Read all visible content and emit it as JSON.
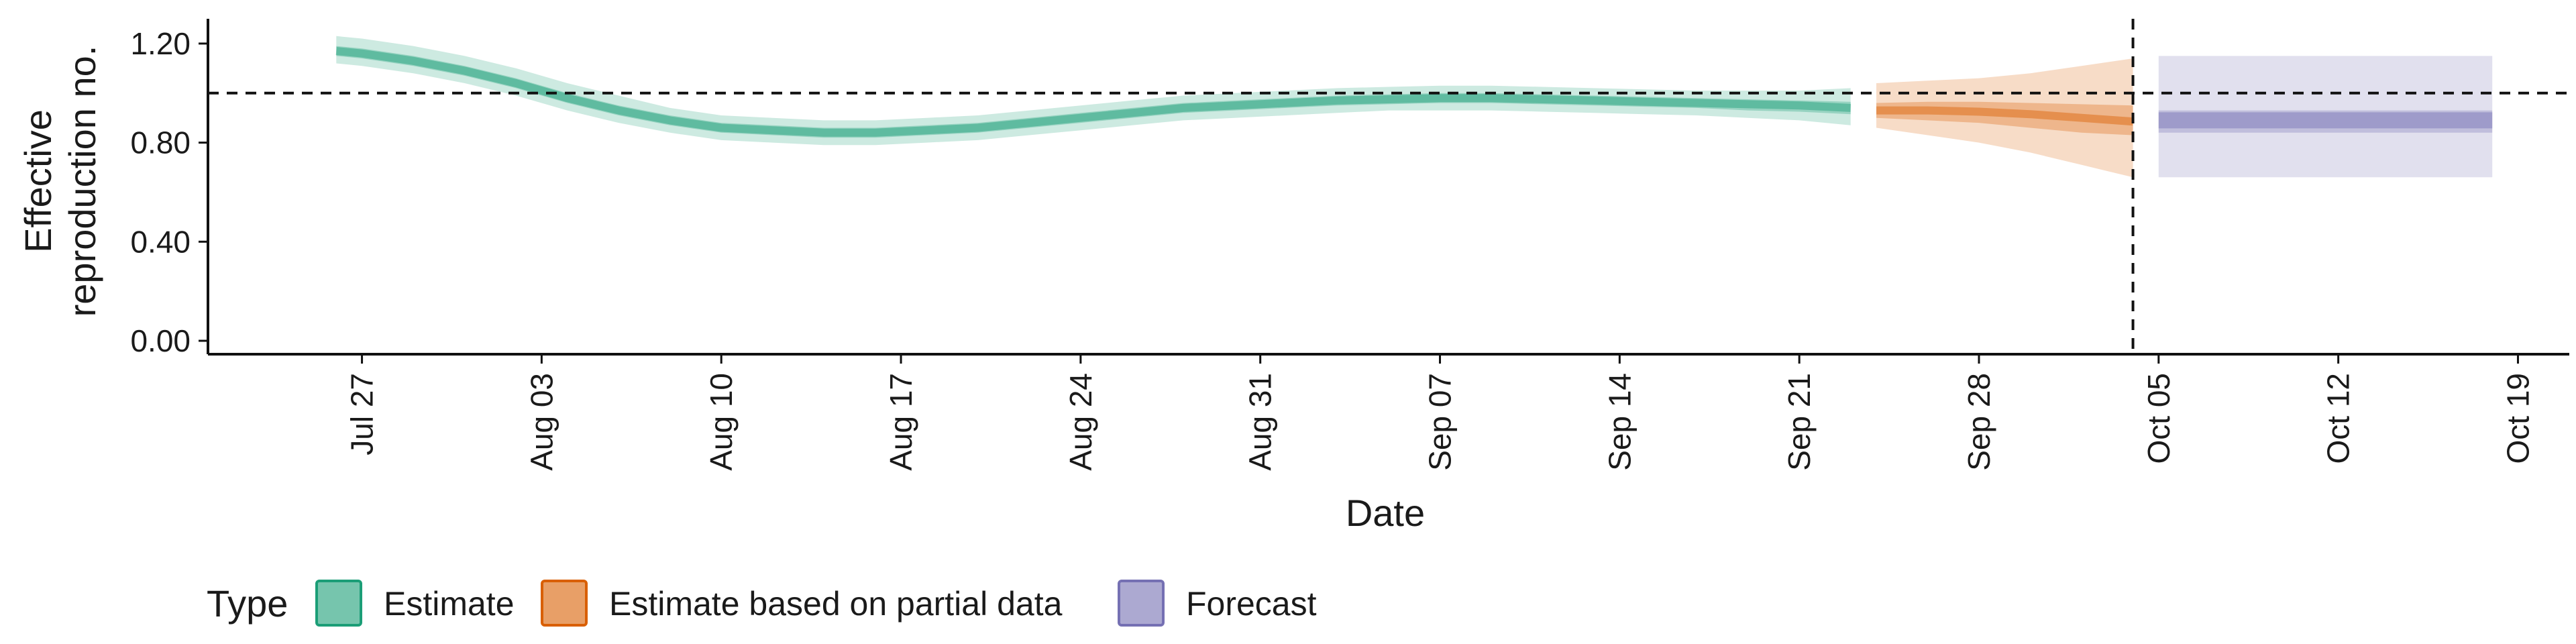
{
  "chart_data": {
    "type": "area",
    "title": "",
    "xlabel": "Date",
    "ylabel": "Effective reproduction no.",
    "ylim": [
      0,
      1.3
    ],
    "xlim": [
      "2020-07-21",
      "2020-10-21"
    ],
    "yticks": [
      0.0,
      0.4,
      0.8,
      1.2
    ],
    "ytick_labels": [
      "0.00",
      "0.40",
      "0.80",
      "1.20"
    ],
    "xticks": [
      "2020-07-27",
      "2020-08-03",
      "2020-08-10",
      "2020-08-17",
      "2020-08-24",
      "2020-08-31",
      "2020-09-07",
      "2020-09-14",
      "2020-09-21",
      "2020-09-28",
      "2020-10-05",
      "2020-10-12",
      "2020-10-19"
    ],
    "xtick_labels": [
      "Jul 27",
      "Aug 03",
      "Aug 10",
      "Aug 17",
      "Aug 24",
      "Aug 31",
      "Sep 07",
      "Sep 14",
      "Sep 21",
      "Sep 28",
      "Oct 05",
      "Oct 12",
      "Oct 19"
    ],
    "reference_line_y": 1.0,
    "forecast_date_line": "2020-10-04",
    "grid": false,
    "legend": {
      "title": "Type",
      "position": "bottom",
      "items": [
        {
          "label": "Estimate",
          "color": "#1b9e77"
        },
        {
          "label": "Estimate based on partial data",
          "color": "#d95f02"
        },
        {
          "label": "Forecast",
          "color": "#7570b3"
        }
      ]
    },
    "series": [
      {
        "name": "Estimate",
        "color": "#1b9e77",
        "x": [
          "2020-07-26",
          "2020-07-27",
          "2020-07-29",
          "2020-07-31",
          "2020-08-02",
          "2020-08-04",
          "2020-08-06",
          "2020-08-08",
          "2020-08-10",
          "2020-08-12",
          "2020-08-14",
          "2020-08-16",
          "2020-08-18",
          "2020-08-20",
          "2020-08-22",
          "2020-08-24",
          "2020-08-26",
          "2020-08-28",
          "2020-08-30",
          "2020-09-01",
          "2020-09-03",
          "2020-09-05",
          "2020-09-07",
          "2020-09-09",
          "2020-09-11",
          "2020-09-13",
          "2020-09-15",
          "2020-09-17",
          "2020-09-19",
          "2020-09-21",
          "2020-09-23"
        ],
        "median": [
          1.17,
          1.16,
          1.13,
          1.09,
          1.04,
          0.98,
          0.93,
          0.89,
          0.86,
          0.85,
          0.84,
          0.84,
          0.85,
          0.86,
          0.88,
          0.9,
          0.92,
          0.94,
          0.95,
          0.96,
          0.97,
          0.975,
          0.98,
          0.98,
          0.975,
          0.97,
          0.965,
          0.96,
          0.955,
          0.95,
          0.94
        ],
        "lower_50": [
          1.15,
          1.14,
          1.11,
          1.07,
          1.02,
          0.96,
          0.91,
          0.87,
          0.84,
          0.83,
          0.82,
          0.82,
          0.83,
          0.84,
          0.86,
          0.88,
          0.9,
          0.92,
          0.93,
          0.94,
          0.95,
          0.955,
          0.96,
          0.96,
          0.955,
          0.95,
          0.945,
          0.94,
          0.93,
          0.925,
          0.915
        ],
        "upper_50": [
          1.19,
          1.18,
          1.15,
          1.11,
          1.06,
          1.0,
          0.95,
          0.91,
          0.88,
          0.87,
          0.86,
          0.86,
          0.87,
          0.88,
          0.9,
          0.92,
          0.94,
          0.96,
          0.97,
          0.98,
          0.99,
          0.995,
          1.0,
          1.0,
          0.995,
          0.99,
          0.985,
          0.98,
          0.975,
          0.97,
          0.965
        ],
        "lower_90": [
          1.12,
          1.11,
          1.08,
          1.04,
          0.99,
          0.93,
          0.88,
          0.84,
          0.81,
          0.8,
          0.79,
          0.79,
          0.8,
          0.81,
          0.83,
          0.85,
          0.87,
          0.89,
          0.9,
          0.91,
          0.92,
          0.93,
          0.93,
          0.93,
          0.925,
          0.92,
          0.915,
          0.91,
          0.9,
          0.89,
          0.87
        ],
        "upper_90": [
          1.23,
          1.22,
          1.19,
          1.15,
          1.1,
          1.04,
          0.99,
          0.94,
          0.91,
          0.9,
          0.89,
          0.89,
          0.9,
          0.91,
          0.93,
          0.95,
          0.97,
          0.99,
          1.0,
          1.01,
          1.02,
          1.025,
          1.03,
          1.03,
          1.025,
          1.02,
          1.015,
          1.01,
          1.01,
          1.01,
          1.02
        ]
      },
      {
        "name": "Estimate based on partial data",
        "color": "#d95f02",
        "x": [
          "2020-09-24",
          "2020-09-26",
          "2020-09-28",
          "2020-09-30",
          "2020-10-02",
          "2020-10-04"
        ],
        "median": [
          0.93,
          0.93,
          0.925,
          0.915,
          0.9,
          0.885
        ],
        "lower_50": [
          0.9,
          0.89,
          0.88,
          0.86,
          0.84,
          0.83
        ],
        "upper_50": [
          0.96,
          0.965,
          0.965,
          0.96,
          0.955,
          0.95
        ],
        "lower_90": [
          0.86,
          0.83,
          0.8,
          0.76,
          0.71,
          0.66
        ],
        "upper_90": [
          1.04,
          1.05,
          1.06,
          1.08,
          1.11,
          1.14
        ]
      },
      {
        "name": "Forecast",
        "color": "#7570b3",
        "x": [
          "2020-10-05",
          "2020-10-18"
        ],
        "median": [
          0.89,
          0.89
        ],
        "lower_50": [
          0.84,
          0.84
        ],
        "upper_50": [
          0.93,
          0.93
        ],
        "lower_90": [
          0.66,
          0.66
        ],
        "upper_90": [
          1.15,
          1.15
        ]
      }
    ]
  }
}
